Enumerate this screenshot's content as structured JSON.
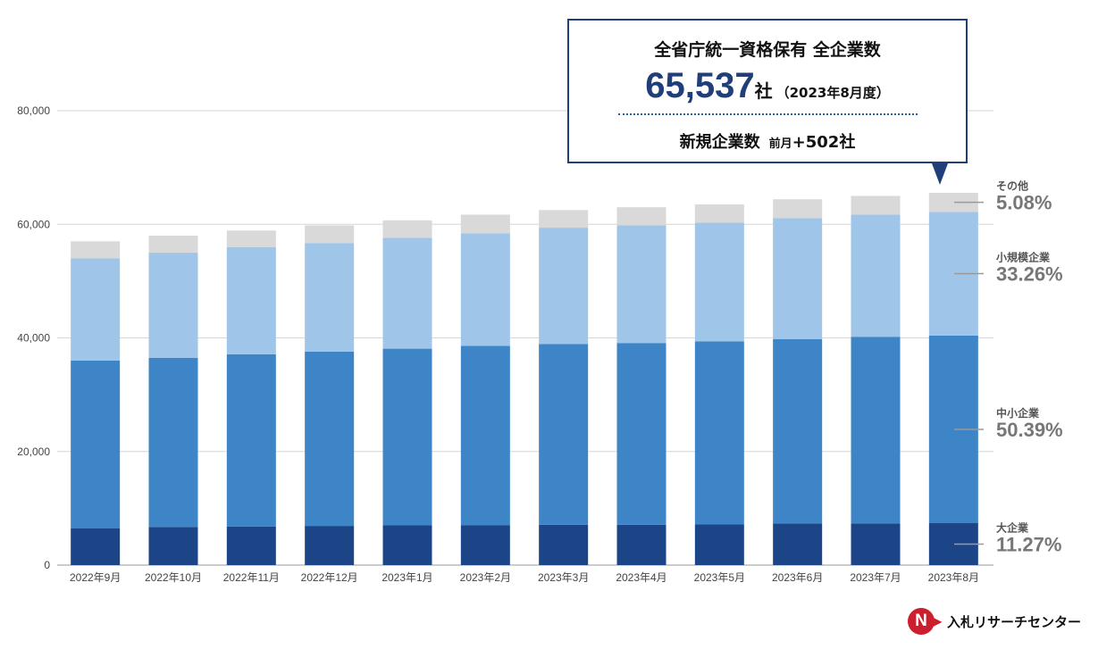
{
  "chart_data": {
    "type": "bar",
    "stacked": true,
    "categories": [
      "2022年9月",
      "2022年10月",
      "2022年11月",
      "2022年12月",
      "2023年1月",
      "2023年2月",
      "2023年3月",
      "2023年4月",
      "2023年5月",
      "2023年6月",
      "2023年7月",
      "2023年8月"
    ],
    "series": [
      {
        "name": "大企業",
        "color": "#1c4587",
        "values": [
          6500,
          6700,
          6800,
          6900,
          7000,
          7000,
          7100,
          7100,
          7200,
          7300,
          7300,
          7385
        ]
      },
      {
        "name": "中小企業",
        "color": "#3d85c6",
        "values": [
          29500,
          29800,
          30300,
          30700,
          31100,
          31600,
          31800,
          32000,
          32200,
          32500,
          32900,
          33024
        ]
      },
      {
        "name": "小規模企業",
        "color": "#9fc5e8",
        "values": [
          18000,
          18500,
          18900,
          19100,
          19500,
          19800,
          20500,
          20700,
          20900,
          21300,
          21500,
          21797
        ]
      },
      {
        "name": "その他",
        "color": "#d9d9d9",
        "values": [
          3000,
          3000,
          2900,
          3100,
          3100,
          3300,
          3100,
          3200,
          3200,
          3300,
          3300,
          3331
        ]
      }
    ],
    "ylim": [
      0,
      80000
    ],
    "yticks": [
      "0",
      "20,000",
      "40,000",
      "60,000",
      "80,000"
    ],
    "grid": true,
    "legend_placement": "right",
    "legend": [
      {
        "name": "その他",
        "percent": "5.08%"
      },
      {
        "name": "小規模企業",
        "percent": "33.26%"
      },
      {
        "name": "中小企業",
        "percent": "50.39%"
      },
      {
        "name": "大企業",
        "percent": "11.27%"
      }
    ]
  },
  "callout": {
    "title": "全省庁統一資格保有 全企業数",
    "total": "65,537",
    "unit": "社",
    "period": "（2023年8月度）",
    "new_label": "新規企業数",
    "prev_label": "前月",
    "delta": "+502社"
  },
  "logo": {
    "mark": "N",
    "name": "入札リサーチセンター",
    "brand_color": "#cc1f2d"
  }
}
